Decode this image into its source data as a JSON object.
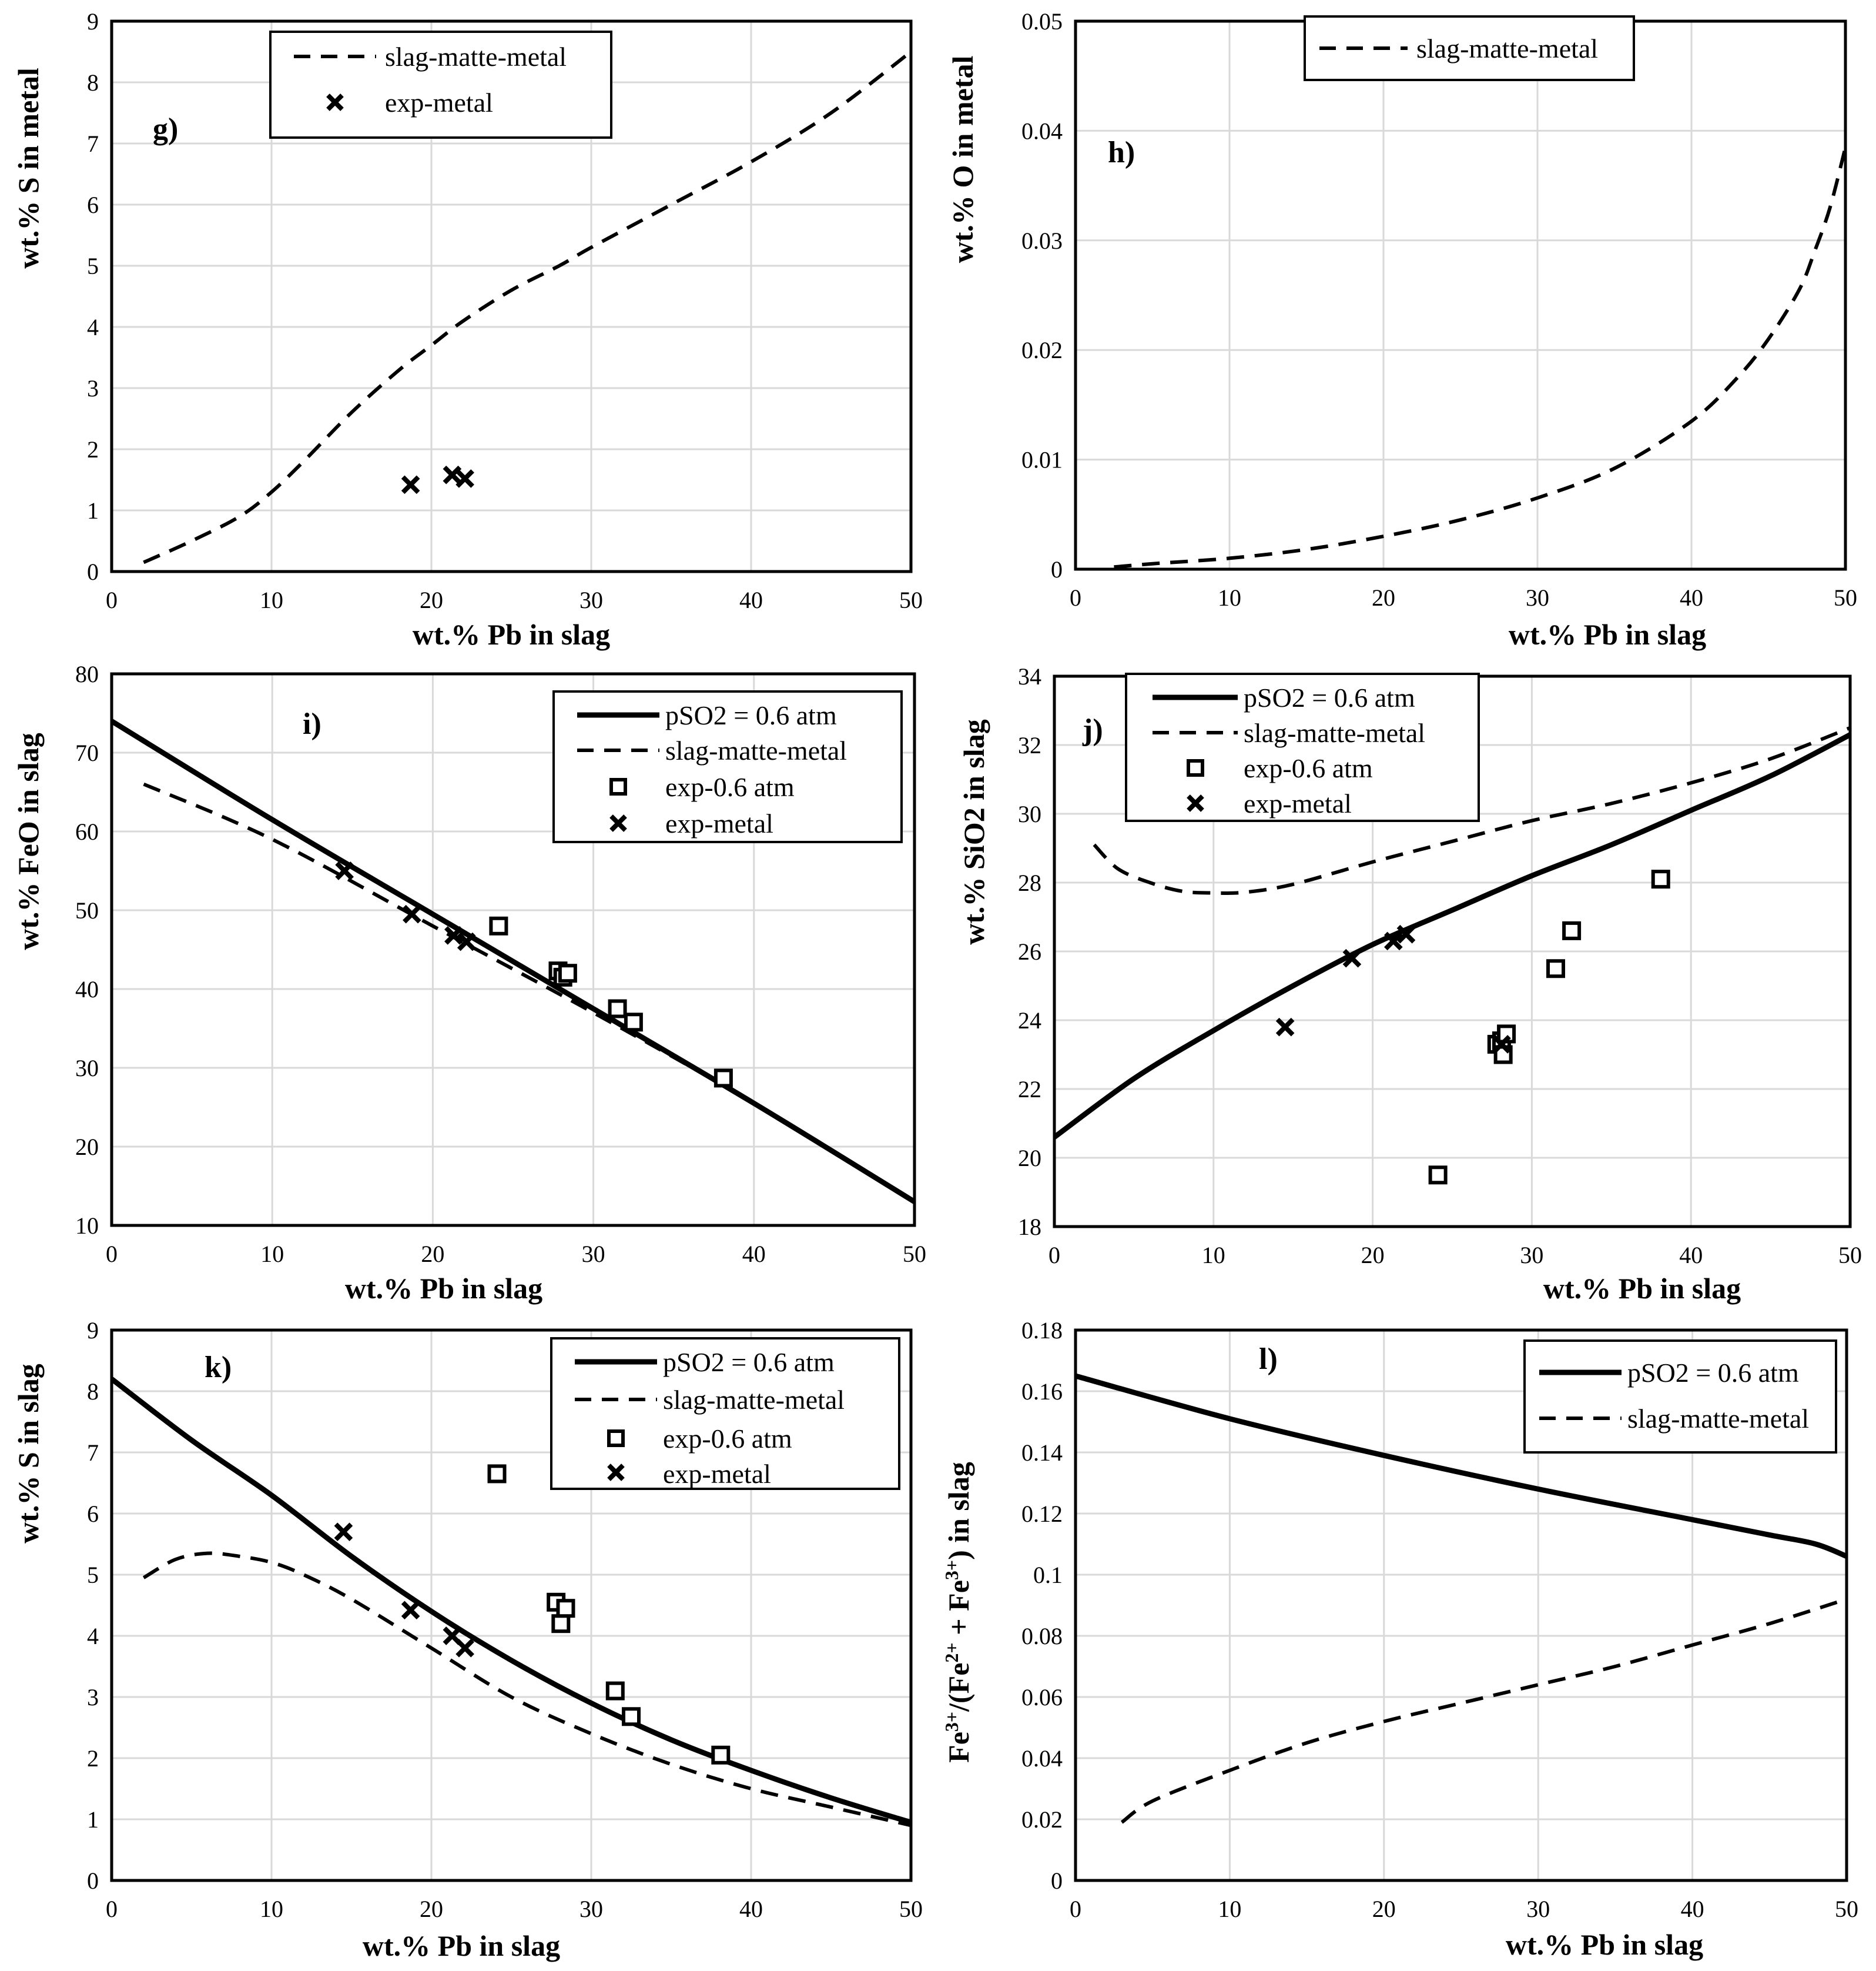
{
  "chart_data": [
    {
      "id": "g",
      "type": "line",
      "panel_label": "g)",
      "xlabel": "wt.% Pb in slag",
      "ylabel": "wt.% S in metal",
      "xlim": [
        0,
        50
      ],
      "ylim": [
        0,
        9
      ],
      "xticks": [
        0,
        10,
        20,
        30,
        40,
        50
      ],
      "yticks": [
        0,
        1,
        2,
        3,
        4,
        5,
        6,
        7,
        8,
        9
      ],
      "xtick_labels": [
        "0",
        "10",
        "20",
        "30",
        "40",
        "50"
      ],
      "ytick_labels": [
        "0",
        "1",
        "2",
        "3",
        "4",
        "5",
        "6",
        "7",
        "8",
        "9"
      ],
      "series": [
        {
          "name": "slag-matte-metal",
          "style": "dashed",
          "x": [
            2,
            5,
            8,
            10,
            12,
            15,
            18,
            20,
            22,
            25,
            28,
            30,
            35,
            40,
            45,
            50
          ],
          "y": [
            0.15,
            0.5,
            0.9,
            1.3,
            1.8,
            2.6,
            3.3,
            3.7,
            4.1,
            4.6,
            5.0,
            5.3,
            6.0,
            6.7,
            7.5,
            8.5
          ]
        },
        {
          "name": "exp-metal",
          "style": "x",
          "x": [
            18.7,
            21.3,
            22.1
          ],
          "y": [
            1.42,
            1.58,
            1.52
          ]
        }
      ],
      "legend": [
        "slag-matte-metal",
        "exp-metal"
      ]
    },
    {
      "id": "h",
      "type": "line",
      "panel_label": "h)",
      "xlabel": "wt.% Pb in slag",
      "ylabel": "wt.% O in metal",
      "xlim": [
        0,
        50
      ],
      "ylim": [
        0,
        0.05
      ],
      "xticks": [
        0,
        10,
        20,
        30,
        40,
        50
      ],
      "yticks": [
        0,
        0.01,
        0.02,
        0.03,
        0.04,
        0.05
      ],
      "xtick_labels": [
        "0",
        "10",
        "20",
        "30",
        "40",
        "50"
      ],
      "ytick_labels": [
        "0",
        "0.01",
        "0.02",
        "0.03",
        "0.04",
        "0.05"
      ],
      "series": [
        {
          "name": "slag-matte-metal",
          "style": "dashed",
          "x": [
            2.5,
            5,
            10,
            15,
            20,
            25,
            30,
            35,
            40,
            43,
            45,
            47,
            48,
            49,
            50
          ],
          "y": [
            0.0002,
            0.0005,
            0.001,
            0.0018,
            0.003,
            0.0045,
            0.0065,
            0.0092,
            0.0135,
            0.0175,
            0.021,
            0.0255,
            0.029,
            0.033,
            0.0385
          ]
        }
      ],
      "legend": [
        "slag-matte-metal"
      ]
    },
    {
      "id": "i",
      "type": "line",
      "panel_label": "i)",
      "xlabel": "wt.% Pb in slag",
      "ylabel": "wt.% FeO in slag",
      "xlim": [
        0,
        50
      ],
      "ylim": [
        10,
        80
      ],
      "xticks": [
        0,
        10,
        20,
        30,
        40,
        50
      ],
      "yticks": [
        10,
        20,
        30,
        40,
        50,
        60,
        70,
        80
      ],
      "xtick_labels": [
        "0",
        "10",
        "20",
        "30",
        "40",
        "50"
      ],
      "ytick_labels": [
        "10",
        "20",
        "30",
        "40",
        "50",
        "60",
        "70",
        "80"
      ],
      "series": [
        {
          "name": "pSO2 = 0.6 atm",
          "style": "solid",
          "x": [
            0,
            10,
            20,
            30,
            40,
            50
          ],
          "y": [
            74,
            61.5,
            49.5,
            37.5,
            25.5,
            13
          ]
        },
        {
          "name": "slag-matte-metal",
          "style": "dashed",
          "x": [
            2,
            10,
            20,
            30,
            40,
            50
          ],
          "y": [
            66,
            59,
            48,
            37,
            25.5,
            13
          ]
        },
        {
          "name": "exp-0.6 atm",
          "style": "square",
          "x": [
            24.1,
            27.8,
            28.1,
            28.4,
            31.5,
            32.5,
            38.1
          ],
          "y": [
            48,
            42.3,
            41.5,
            42,
            37.5,
            35.8,
            28.7
          ]
        },
        {
          "name": "exp-metal",
          "style": "x",
          "x": [
            14.5,
            18.7,
            21.3,
            22.1
          ],
          "y": [
            55,
            49.5,
            46.8,
            46
          ]
        }
      ],
      "legend": [
        "pSO2 = 0.6 atm",
        "slag-matte-metal",
        "exp-0.6 atm",
        "exp-metal"
      ]
    },
    {
      "id": "j",
      "type": "line",
      "panel_label": "j)",
      "xlabel": "wt.% Pb in slag",
      "ylabel": "wt.% SiO2 in slag",
      "xlim": [
        0,
        50
      ],
      "ylim": [
        18,
        34
      ],
      "xticks": [
        0,
        10,
        20,
        30,
        40,
        50
      ],
      "yticks": [
        18,
        20,
        22,
        24,
        26,
        28,
        30,
        32,
        34
      ],
      "xtick_labels": [
        "0",
        "10",
        "20",
        "30",
        "40",
        "50"
      ],
      "ytick_labels": [
        "18",
        "20",
        "22",
        "24",
        "26",
        "28",
        "30",
        "32",
        "34"
      ],
      "series": [
        {
          "name": "pSO2 = 0.6 atm",
          "style": "solid",
          "x": [
            0,
            5,
            10,
            15,
            20,
            25,
            30,
            35,
            40,
            45,
            50
          ],
          "y": [
            20.6,
            22.3,
            23.7,
            25.0,
            26.2,
            27.2,
            28.2,
            29.1,
            30.1,
            31.1,
            32.3
          ]
        },
        {
          "name": "slag-matte-metal",
          "style": "dashed",
          "x": [
            2.5,
            4,
            6,
            8,
            10,
            12,
            15,
            20,
            25,
            30,
            35,
            40,
            45,
            50
          ],
          "y": [
            29.1,
            28.4,
            28.0,
            27.75,
            27.7,
            27.72,
            27.95,
            28.6,
            29.2,
            29.8,
            30.3,
            30.9,
            31.6,
            32.5
          ]
        },
        {
          "name": "exp-0.6 atm",
          "style": "square",
          "x": [
            24.1,
            27.8,
            28.1,
            28.2,
            28.4,
            31.5,
            32.5,
            38.1
          ],
          "y": [
            19.5,
            23.3,
            23.4,
            23.0,
            23.6,
            25.5,
            26.6,
            28.1
          ]
        },
        {
          "name": "exp-metal",
          "style": "x",
          "x": [
            14.5,
            18.7,
            21.3,
            22.1,
            28.1
          ],
          "y": [
            23.8,
            25.8,
            26.3,
            26.5,
            23.3
          ]
        }
      ],
      "legend": [
        "pSO2 = 0.6 atm",
        "slag-matte-metal",
        "exp-0.6 atm",
        "exp-metal"
      ]
    },
    {
      "id": "k",
      "type": "line",
      "panel_label": "k)",
      "xlabel": "wt.% Pb in slag",
      "ylabel": "wt.% S in slag",
      "xlim": [
        0,
        50
      ],
      "ylim": [
        0,
        9
      ],
      "xticks": [
        0,
        10,
        20,
        30,
        40,
        50
      ],
      "yticks": [
        0,
        1,
        2,
        3,
        4,
        5,
        6,
        7,
        8,
        9
      ],
      "xtick_labels": [
        "0",
        "10",
        "20",
        "30",
        "40",
        "50"
      ],
      "ytick_labels": [
        "0",
        "1",
        "2",
        "3",
        "4",
        "5",
        "6",
        "7",
        "8",
        "9"
      ],
      "series": [
        {
          "name": "pSO2 = 0.6 atm",
          "style": "solid",
          "x": [
            0,
            5,
            10,
            15,
            20,
            25,
            30,
            35,
            40,
            45,
            50
          ],
          "y": [
            8.2,
            7.2,
            6.3,
            5.3,
            4.4,
            3.6,
            2.9,
            2.3,
            1.8,
            1.35,
            0.95
          ]
        },
        {
          "name": "slag-matte-metal",
          "style": "dashed",
          "x": [
            2,
            4,
            6,
            8,
            10,
            12,
            15,
            20,
            25,
            30,
            35,
            40,
            45,
            50
          ],
          "y": [
            4.95,
            5.25,
            5.35,
            5.3,
            5.2,
            5.0,
            4.6,
            3.8,
            3.0,
            2.4,
            1.9,
            1.5,
            1.2,
            0.9
          ]
        },
        {
          "name": "exp-0.6 atm",
          "style": "square",
          "x": [
            24.1,
            27.8,
            28.1,
            28.4,
            31.5,
            32.5,
            38.1
          ],
          "y": [
            6.65,
            4.55,
            4.2,
            4.45,
            3.1,
            2.68,
            2.05
          ]
        },
        {
          "name": "exp-metal",
          "style": "x",
          "x": [
            14.5,
            18.7,
            21.3,
            22.1
          ],
          "y": [
            5.7,
            4.42,
            4.0,
            3.8
          ]
        }
      ],
      "legend": [
        "pSO2 = 0.6 atm",
        "slag-matte-metal",
        "exp-0.6 atm",
        "exp-metal"
      ]
    },
    {
      "id": "l",
      "type": "line",
      "panel_label": "l)",
      "xlabel": "wt.% Pb in slag",
      "ylabel": "Fe3+/(Fe2+ + Fe3+) in slag",
      "xlim": [
        0,
        50
      ],
      "ylim": [
        0,
        0.18
      ],
      "xticks": [
        0,
        10,
        20,
        30,
        40,
        50
      ],
      "yticks": [
        0,
        0.02,
        0.04,
        0.06,
        0.08,
        0.1,
        0.12,
        0.14,
        0.16,
        0.18
      ],
      "xtick_labels": [
        "0",
        "10",
        "20",
        "30",
        "40",
        "50"
      ],
      "ytick_labels": [
        "0",
        "0.02",
        "0.04",
        "0.06",
        "0.08",
        "0.1",
        "0.12",
        "0.14",
        "0.16",
        "0.18"
      ],
      "series": [
        {
          "name": "pSO2 = 0.6 atm",
          "style": "solid",
          "x": [
            0,
            10,
            20,
            30,
            40,
            45,
            48,
            50
          ],
          "y": [
            0.165,
            0.151,
            0.139,
            0.128,
            0.118,
            0.113,
            0.11,
            0.106
          ]
        },
        {
          "name": "slag-matte-metal",
          "style": "dashed",
          "x": [
            3,
            5,
            10,
            15,
            20,
            25,
            30,
            35,
            40,
            45,
            50
          ],
          "y": [
            0.019,
            0.026,
            0.036,
            0.045,
            0.052,
            0.058,
            0.064,
            0.07,
            0.077,
            0.084,
            0.092
          ]
        }
      ],
      "legend": [
        "pSO2 = 0.6 atm",
        "slag-matte-metal"
      ]
    }
  ]
}
